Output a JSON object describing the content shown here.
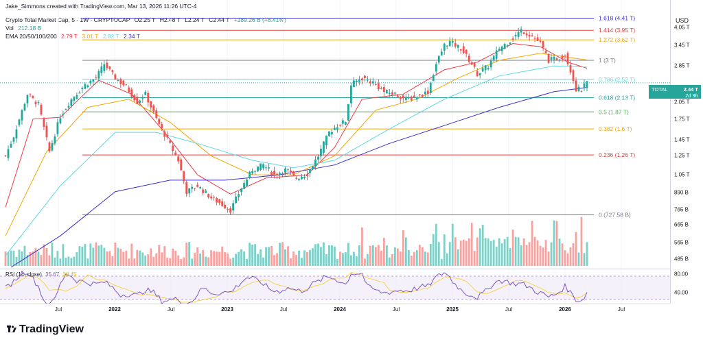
{
  "header": {
    "credit": "Jake_Simmons created with TradingView.com, Mar 13, 2026 11:26 UTC-4",
    "symbol": "Crypto Total Market Cap, 5 · 1W · CRYPTOCAP",
    "ohlc": {
      "o": "O2.25 T",
      "h": "H2.48 T",
      "l": "L2.24 T",
      "c": "C2.44 T",
      "chg": "+189.26 B (+8.41%)"
    },
    "vol_label": "Vol",
    "vol_value": "212.18 B",
    "ema_label": "EMA 20/50/100/200",
    "ema_values": [
      {
        "text": "2.79 T",
        "color": "#f23645"
      },
      {
        "text": "3.01 T",
        "color": "#f7a600"
      },
      {
        "text": "2.82 T",
        "color": "#5fd8e6"
      },
      {
        "text": "2.34 T",
        "color": "#3a2fc9"
      }
    ]
  },
  "price_axis": {
    "currency": "USD",
    "ticks": [
      "4.05 T",
      "3.45 T",
      "2.85 T",
      "2.05 T",
      "1.75 T",
      "1.45 T",
      "1.25 T",
      "1.05 T",
      "890 B",
      "765 B",
      "665 B",
      "565 B",
      "485 B"
    ],
    "tick_values": [
      4.05,
      3.45,
      2.85,
      2.05,
      1.75,
      1.45,
      1.25,
      1.05,
      0.89,
      0.765,
      0.665,
      0.565,
      0.485
    ],
    "tag": {
      "name": "TOTAL",
      "value": "2.44 T",
      "countdown": "2d 9h"
    }
  },
  "time_axis": {
    "ticks": [
      {
        "label": "Jul",
        "bold": false
      },
      {
        "label": "2022",
        "bold": true
      },
      {
        "label": "Jul",
        "bold": false
      },
      {
        "label": "2023",
        "bold": true
      },
      {
        "label": "Jul",
        "bold": false
      },
      {
        "label": "2024",
        "bold": true
      },
      {
        "label": "Jul",
        "bold": false
      },
      {
        "label": "2025",
        "bold": true
      },
      {
        "label": "Jul",
        "bold": false
      },
      {
        "label": "2026",
        "bold": true
      },
      {
        "label": "Jul",
        "bold": false
      }
    ]
  },
  "rsi": {
    "label": "RSI (14, close)",
    "value": "35.67",
    "ma_value": "28.45",
    "ticks": [
      "80.00",
      "40.00"
    ],
    "colors": {
      "rsi": "#7e57c2",
      "ma": "#f7d44c",
      "band": "#7e57c2"
    }
  },
  "colors": {
    "up": "#26a69a",
    "down": "#ef5350",
    "vol_up": "#7fcfc7",
    "vol_down": "#f5a3a1"
  },
  "logo": "TradingView",
  "chart_data": {
    "type": "candlestick",
    "title": "Crypto Total Market Cap, 5 · 1W · CRYPTOCAP",
    "scale": "log",
    "ylim": [
      0.45,
      4.6
    ],
    "fibonacci": [
      {
        "level": "1.618",
        "value": "4.41 T",
        "price": 4.41,
        "color": "#3a2fc9"
      },
      {
        "level": "1.414",
        "value": "3.95 T",
        "price": 3.95,
        "color": "#e0403f"
      },
      {
        "level": "1.272",
        "value": "3.62 T",
        "price": 3.62,
        "color": "#f7a600"
      },
      {
        "level": "1",
        "value": "3 T",
        "price": 3.0,
        "color": "#787b86"
      },
      {
        "level": "0.786",
        "value": "2.52 T",
        "price": 2.52,
        "color": "#5fd8e6"
      },
      {
        "level": "0.618",
        "value": "2.13 T",
        "price": 2.13,
        "color": "#26a69a"
      },
      {
        "level": "0.5",
        "value": "1.87 T",
        "price": 1.87,
        "color": "#4caf50"
      },
      {
        "level": "0.382",
        "value": "1.6 T",
        "price": 1.6,
        "color": "#f7a600"
      },
      {
        "level": "0.236",
        "value": "1.26 T",
        "price": 1.26,
        "color": "#e0403f"
      },
      {
        "level": "0",
        "value": "727.58 B",
        "price": 0.72758,
        "color": "#787b86"
      }
    ],
    "path": [
      [
        0,
        1.25
      ],
      [
        3,
        1.5
      ],
      [
        8,
        2.2
      ],
      [
        12,
        2.0
      ],
      [
        16,
        1.3
      ],
      [
        20,
        1.8
      ],
      [
        24,
        2.1
      ],
      [
        29,
        2.4
      ],
      [
        33,
        2.55
      ],
      [
        36,
        2.9
      ],
      [
        40,
        2.55
      ],
      [
        44,
        2.35
      ],
      [
        48,
        2.05
      ],
      [
        51,
        2.2
      ],
      [
        55,
        1.75
      ],
      [
        59,
        1.45
      ],
      [
        63,
        1.2
      ],
      [
        66,
        0.9
      ],
      [
        70,
        0.95
      ],
      [
        75,
        0.85
      ],
      [
        79,
        0.8
      ],
      [
        82,
        0.76
      ],
      [
        86,
        0.93
      ],
      [
        90,
        1.1
      ],
      [
        94,
        1.15
      ],
      [
        98,
        1.05
      ],
      [
        102,
        1.1
      ],
      [
        106,
        1.02
      ],
      [
        110,
        1.06
      ],
      [
        114,
        1.25
      ],
      [
        118,
        1.55
      ],
      [
        121,
        1.65
      ],
      [
        124,
        1.72
      ],
      [
        126,
        2.4
      ],
      [
        130,
        2.55
      ],
      [
        134,
        2.45
      ],
      [
        138,
        2.25
      ],
      [
        142,
        2.2
      ],
      [
        146,
        2.1
      ],
      [
        150,
        2.15
      ],
      [
        154,
        2.25
      ],
      [
        157,
        2.9
      ],
      [
        160,
        3.45
      ],
      [
        162,
        3.55
      ],
      [
        166,
        3.35
      ],
      [
        170,
        2.9
      ],
      [
        172,
        2.65
      ],
      [
        176,
        2.85
      ],
      [
        180,
        3.35
      ],
      [
        184,
        3.6
      ],
      [
        188,
        3.95
      ],
      [
        192,
        3.75
      ],
      [
        195,
        3.5
      ],
      [
        198,
        3.0
      ],
      [
        201,
        3.05
      ],
      [
        204,
        3.15
      ],
      [
        206,
        2.75
      ],
      [
        208,
        2.3
      ],
      [
        210,
        2.3
      ],
      [
        212,
        2.44
      ]
    ],
    "ema": [
      {
        "name": "EMA 20",
        "color": "#f23645",
        "points": [
          [
            0,
            0.78
          ],
          [
            10,
            1.75
          ],
          [
            20,
            1.78
          ],
          [
            34,
            2.5
          ],
          [
            46,
            2.2
          ],
          [
            58,
            1.55
          ],
          [
            70,
            1.05
          ],
          [
            82,
            0.88
          ],
          [
            95,
            1.02
          ],
          [
            110,
            1.05
          ],
          [
            120,
            1.35
          ],
          [
            130,
            2.1
          ],
          [
            145,
            2.2
          ],
          [
            160,
            2.75
          ],
          [
            172,
            2.95
          ],
          [
            185,
            3.5
          ],
          [
            195,
            3.4
          ],
          [
            205,
            2.95
          ],
          [
            212,
            2.79
          ]
        ]
      },
      {
        "name": "EMA 50",
        "color": "#f7a600",
        "points": [
          [
            0,
            0.6
          ],
          [
            15,
            1.3
          ],
          [
            30,
            1.95
          ],
          [
            45,
            2.1
          ],
          [
            60,
            1.7
          ],
          [
            75,
            1.25
          ],
          [
            90,
            1.05
          ],
          [
            105,
            1.05
          ],
          [
            120,
            1.25
          ],
          [
            135,
            1.9
          ],
          [
            150,
            2.1
          ],
          [
            165,
            2.55
          ],
          [
            180,
            3.0
          ],
          [
            195,
            3.2
          ],
          [
            212,
            3.01
          ]
        ]
      },
      {
        "name": "EMA 100",
        "color": "#5fd8e6",
        "points": [
          [
            0,
            0.5
          ],
          [
            20,
            0.95
          ],
          [
            40,
            1.55
          ],
          [
            55,
            1.55
          ],
          [
            70,
            1.4
          ],
          [
            90,
            1.2
          ],
          [
            105,
            1.12
          ],
          [
            120,
            1.2
          ],
          [
            140,
            1.6
          ],
          [
            160,
            2.1
          ],
          [
            180,
            2.6
          ],
          [
            200,
            2.85
          ],
          [
            212,
            2.82
          ]
        ]
      },
      {
        "name": "EMA 200",
        "color": "#3a2fc9",
        "points": [
          [
            2,
            0.45
          ],
          [
            20,
            0.6
          ],
          [
            40,
            0.9
          ],
          [
            60,
            1.0
          ],
          [
            80,
            1.0
          ],
          [
            100,
            1.05
          ],
          [
            120,
            1.15
          ],
          [
            140,
            1.4
          ],
          [
            160,
            1.65
          ],
          [
            180,
            1.95
          ],
          [
            200,
            2.25
          ],
          [
            212,
            2.34
          ]
        ]
      }
    ],
    "volume_points": 210,
    "rsi_range": [
      20,
      100
    ]
  }
}
